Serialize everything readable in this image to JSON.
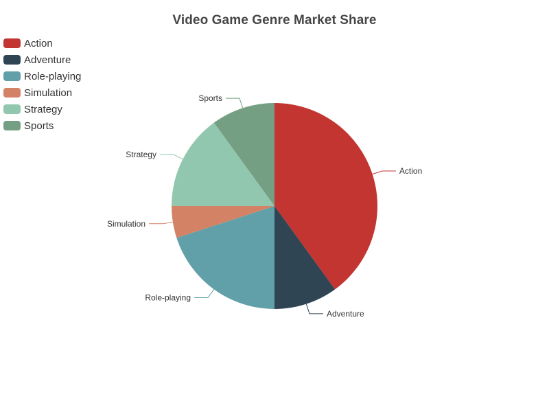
{
  "chart_data": {
    "type": "pie",
    "title": "Video Game Genre Market Share",
    "legend_position": "top-left",
    "categories": [
      "Action",
      "Adventure",
      "Role-playing",
      "Simulation",
      "Strategy",
      "Sports"
    ],
    "values": [
      40,
      10,
      20,
      5,
      15,
      10
    ],
    "colors": [
      "#c23531",
      "#2f4554",
      "#61a0a8",
      "#d48265",
      "#91c7ae",
      "#749f83"
    ]
  }
}
